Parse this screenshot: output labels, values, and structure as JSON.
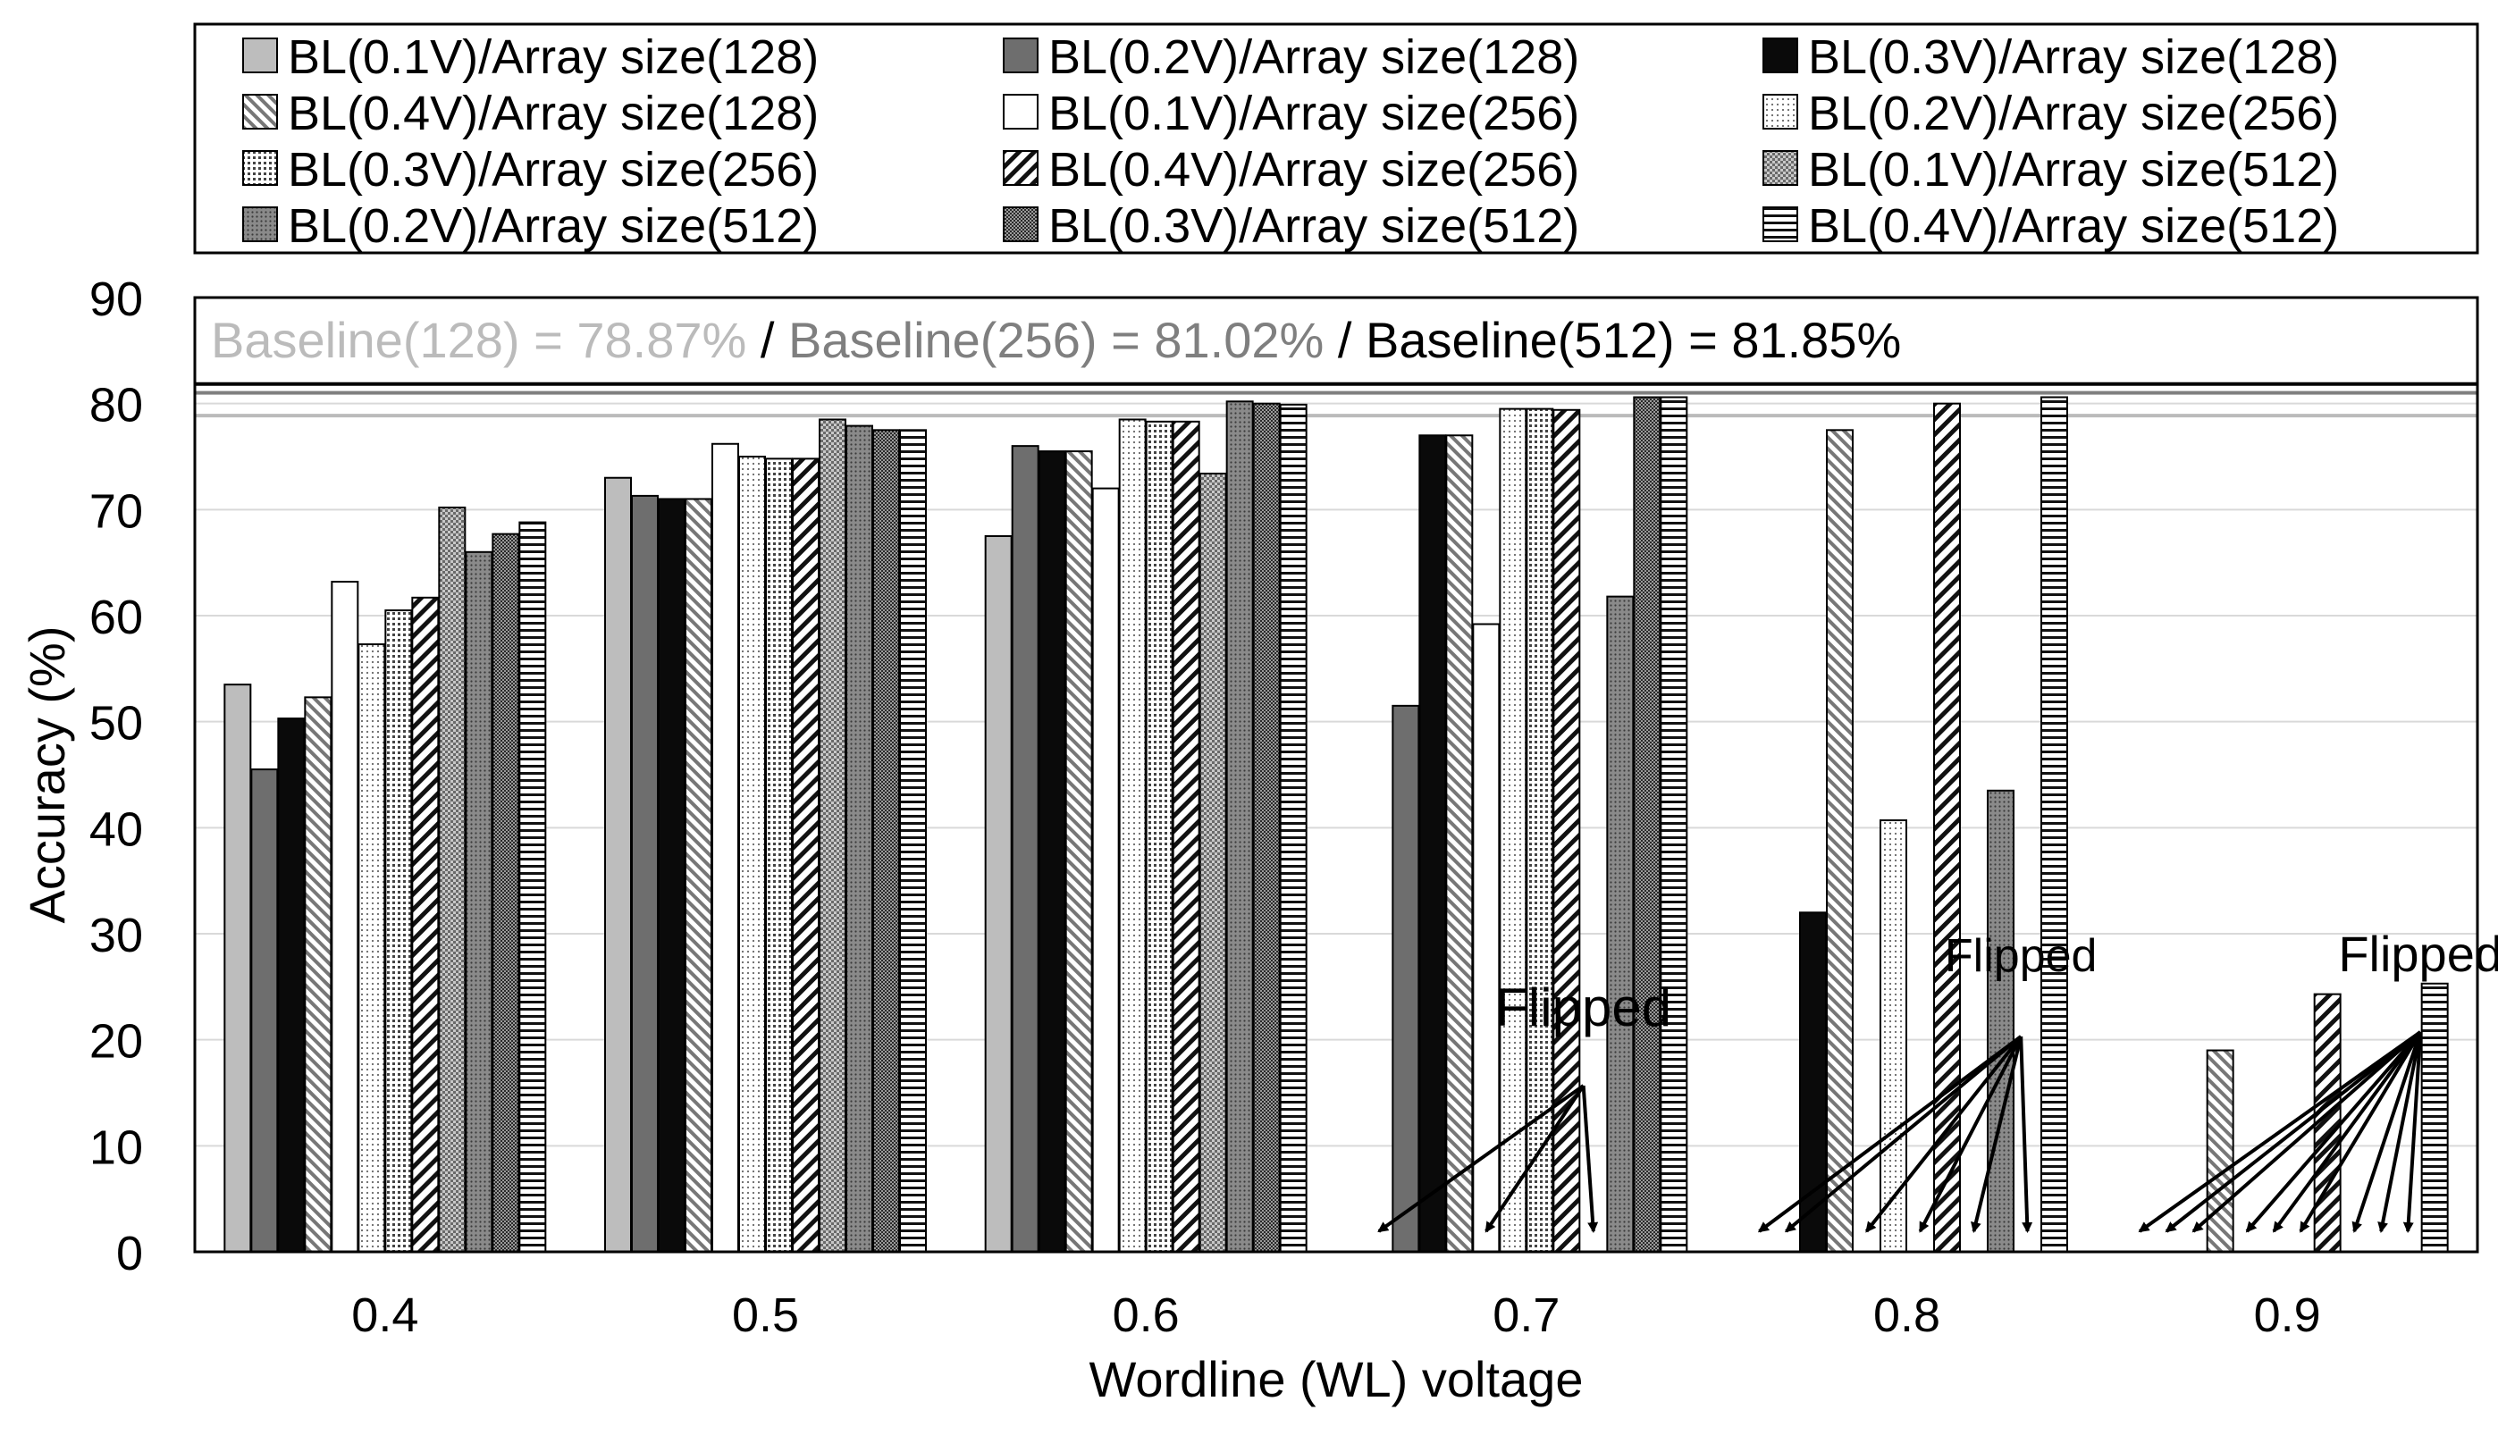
{
  "chart_data": {
    "type": "bar",
    "title": "",
    "xlabel": "Wordline (WL) voltage",
    "ylabel": "Accuracy (%)",
    "ylim": [
      0,
      90
    ],
    "yticks": [
      0,
      10,
      20,
      30,
      40,
      50,
      60,
      70,
      80,
      90
    ],
    "grid": true,
    "legend_position": "top",
    "categories": [
      "0.4",
      "0.5",
      "0.6",
      "0.7",
      "0.8",
      "0.9"
    ],
    "series": [
      {
        "name": "BL(0.1V)/Array size(128)",
        "pattern": "light-gray",
        "values": [
          53.5,
          73.0,
          67.5,
          null,
          null,
          null
        ]
      },
      {
        "name": "BL(0.2V)/Array size(128)",
        "pattern": "dark-gray",
        "values": [
          45.5,
          71.3,
          76.0,
          51.5,
          null,
          null
        ]
      },
      {
        "name": "BL(0.3V)/Array size(128)",
        "pattern": "black",
        "values": [
          50.3,
          71.0,
          75.5,
          77.0,
          32.0,
          null
        ]
      },
      {
        "name": "BL(0.4V)/Array size(128)",
        "pattern": "diag-right",
        "values": [
          52.3,
          71.0,
          75.5,
          77.0,
          77.5,
          19.0
        ]
      },
      {
        "name": "BL(0.1V)/Array size(256)",
        "pattern": "white",
        "values": [
          63.2,
          76.2,
          72.0,
          59.2,
          null,
          null
        ]
      },
      {
        "name": "BL(0.2V)/Array size(256)",
        "pattern": "fine-dots",
        "values": [
          57.3,
          75.0,
          78.5,
          79.5,
          40.7,
          null
        ]
      },
      {
        "name": "BL(0.3V)/Array size(256)",
        "pattern": "dots",
        "values": [
          60.5,
          74.8,
          78.3,
          79.5,
          null,
          null
        ]
      },
      {
        "name": "BL(0.4V)/Array size(256)",
        "pattern": "diag-left",
        "values": [
          61.7,
          74.8,
          78.3,
          79.4,
          80.0,
          24.3
        ]
      },
      {
        "name": "BL(0.1V)/Array size(512)",
        "pattern": "check",
        "values": [
          70.2,
          78.5,
          73.4,
          null,
          null,
          null
        ]
      },
      {
        "name": "BL(0.2V)/Array size(512)",
        "pattern": "gray-dots",
        "values": [
          66.0,
          77.9,
          80.2,
          61.8,
          43.5,
          null
        ]
      },
      {
        "name": "BL(0.3V)/Array size(512)",
        "pattern": "dense-check",
        "values": [
          67.7,
          77.5,
          80.0,
          80.6,
          null,
          null
        ]
      },
      {
        "name": "BL(0.4V)/Array size(512)",
        "pattern": "horizontal",
        "values": [
          68.8,
          77.5,
          79.9,
          80.6,
          80.6,
          25.3
        ]
      }
    ],
    "baselines": [
      {
        "label": "Baseline(128) = 78.87%",
        "value": 78.87,
        "color": "#bbbbbb"
      },
      {
        "label": "Baseline(256) = 81.02%",
        "value": 81.02,
        "color": "#7f7f7f"
      },
      {
        "label": "Baseline(512) = 81.85%",
        "value": 81.85,
        "color": "#000000"
      }
    ],
    "baseline_separator": " / ",
    "annotations": [
      {
        "text": "Flipped",
        "category": "0.7",
        "flipped_series": [
          0,
          4,
          8
        ]
      },
      {
        "text": "Flipped",
        "category": "0.8",
        "flipped_series": [
          0,
          1,
          4,
          6,
          8,
          10
        ]
      },
      {
        "text": "Flipped",
        "category": "0.9",
        "flipped_series": [
          0,
          1,
          2,
          4,
          5,
          6,
          8,
          9,
          10
        ]
      }
    ]
  }
}
